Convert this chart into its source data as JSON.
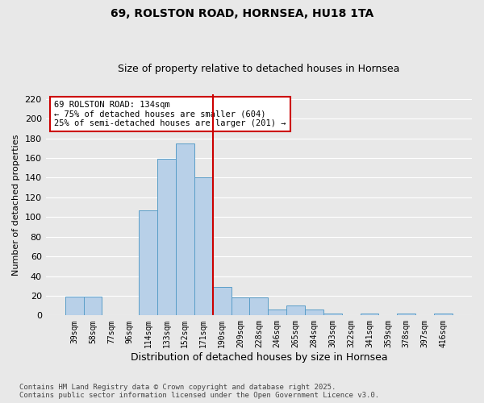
{
  "title_line1": "69, ROLSTON ROAD, HORNSEA, HU18 1TA",
  "title_line2": "Size of property relative to detached houses in Hornsea",
  "xlabel": "Distribution of detached houses by size in Hornsea",
  "ylabel": "Number of detached properties",
  "categories": [
    "39sqm",
    "58sqm",
    "77sqm",
    "96sqm",
    "114sqm",
    "133sqm",
    "152sqm",
    "171sqm",
    "190sqm",
    "209sqm",
    "228sqm",
    "246sqm",
    "265sqm",
    "284sqm",
    "303sqm",
    "322sqm",
    "341sqm",
    "359sqm",
    "378sqm",
    "397sqm",
    "416sqm"
  ],
  "values": [
    19,
    19,
    0,
    0,
    107,
    159,
    175,
    140,
    29,
    18,
    18,
    6,
    10,
    6,
    2,
    0,
    2,
    0,
    2,
    0,
    2
  ],
  "bar_color": "#b8d0e8",
  "bar_edge_color": "#5a9ec8",
  "vline_x_idx": 7.5,
  "vline_color": "#cc0000",
  "annotation_line1": "69 ROLSTON ROAD: 134sqm",
  "annotation_line2": "← 75% of detached houses are smaller (604)",
  "annotation_line3": "25% of semi-detached houses are larger (201) →",
  "annotation_box_color": "#ffffff",
  "annotation_box_edge": "#cc0000",
  "ylim": [
    0,
    225
  ],
  "yticks": [
    0,
    20,
    40,
    60,
    80,
    100,
    120,
    140,
    160,
    180,
    200,
    220
  ],
  "footnote_line1": "Contains HM Land Registry data © Crown copyright and database right 2025.",
  "footnote_line2": "Contains public sector information licensed under the Open Government Licence v3.0.",
  "bg_color": "#e8e8e8",
  "plot_bg_color": "#e8e8e8",
  "grid_color": "#ffffff",
  "title_fontsize": 10,
  "subtitle_fontsize": 9
}
